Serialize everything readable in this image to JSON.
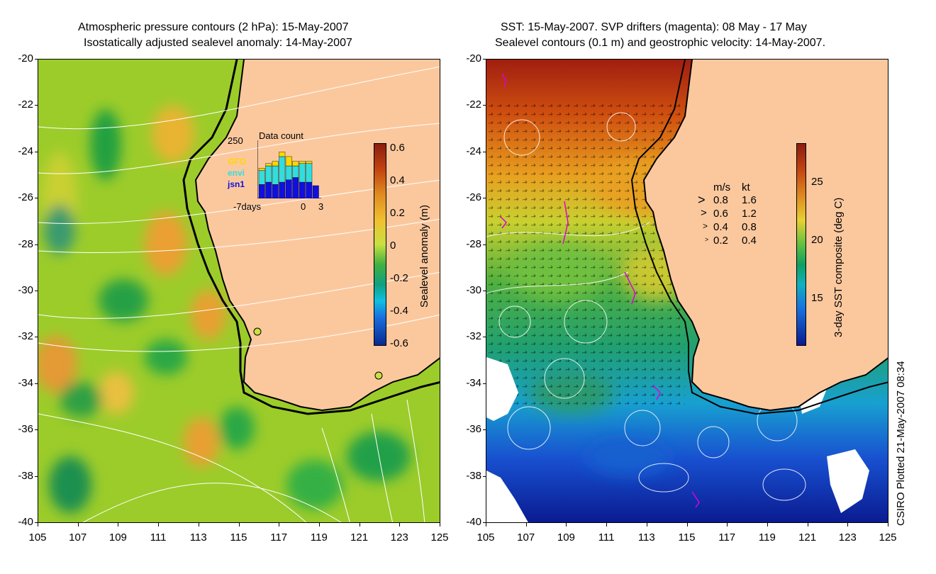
{
  "left_panel": {
    "title_line1": "Atmospheric pressure contours (2 hPa): 15-May-2007",
    "title_line2": "Isostatically adjusted sealevel anomaly: 14-May-2007",
    "colorbar": {
      "label": "Sealevel anomaly (m)",
      "ticks": [
        "0.6",
        "0.4",
        "0.2",
        "0",
        "-0.2",
        "-0.4",
        "-0.6"
      ],
      "range": [
        -0.6,
        0.6
      ]
    },
    "inset": {
      "title": "Data count",
      "ymax_label": "250",
      "x_label_left": "-7days",
      "x_label_mid": "0",
      "x_label_right": "3",
      "series": [
        {
          "name": "GFO",
          "color": "#ffd700"
        },
        {
          "name": "envi",
          "color": "#33dddd"
        },
        {
          "name": "jsn1",
          "color": "#1010dd"
        }
      ],
      "bars": [
        {
          "day": -7,
          "jsn1": 60,
          "envi": 60,
          "GFO": 10
        },
        {
          "day": -6,
          "jsn1": 70,
          "envi": 70,
          "GFO": 10
        },
        {
          "day": -5,
          "jsn1": 60,
          "envi": 80,
          "GFO": 20
        },
        {
          "day": -4,
          "jsn1": 70,
          "envi": 110,
          "GFO": 20
        },
        {
          "day": -3,
          "jsn1": 80,
          "envi": 60,
          "GFO": 40
        },
        {
          "day": -2,
          "jsn1": 90,
          "envi": 50,
          "GFO": 20
        },
        {
          "day": -1,
          "jsn1": 70,
          "envi": 80,
          "GFO": 10
        },
        {
          "day": 0,
          "jsn1": 70,
          "envi": 80,
          "GFO": 10
        },
        {
          "day": 1,
          "jsn1": 55,
          "envi": 0,
          "GFO": 0
        }
      ]
    }
  },
  "right_panel": {
    "title_line1": "SST: 15-May-2007. SVP drifters (magenta): 08 May - 17 May",
    "title_line2": "Sealevel contours (0.1 m) and geostrophic velocity: 14-May-2007.",
    "colorbar": {
      "label": "3-day SST composite (deg C)",
      "ticks": [
        "25",
        "20",
        "15"
      ],
      "range": [
        11,
        28
      ]
    },
    "velocity_legend": {
      "header_ms": "m/s",
      "header_kt": "kt",
      "rows": [
        {
          "ms": "0.8",
          "kt": "1.6"
        },
        {
          "ms": "0.6",
          "kt": "1.2"
        },
        {
          "ms": "0.4",
          "kt": "0.8"
        },
        {
          "ms": "0.2",
          "kt": "0.4"
        }
      ]
    }
  },
  "axes": {
    "lat_ticks": [
      "-20",
      "-22",
      "-24",
      "-26",
      "-28",
      "-30",
      "-32",
      "-34",
      "-36",
      "-38",
      "-40"
    ],
    "lon_ticks": [
      "105",
      "107",
      "109",
      "111",
      "113",
      "115",
      "117",
      "119",
      "121",
      "123",
      "125"
    ],
    "lat_range": [
      -40,
      -20
    ],
    "lon_range": [
      105,
      125
    ]
  },
  "colors": {
    "land": "#fbc89e",
    "coast": "#000000",
    "contour": "#ffffff",
    "drifter": "#dd00dd"
  },
  "credit": "CSIRO Plotted 21-May-2007 08:34"
}
